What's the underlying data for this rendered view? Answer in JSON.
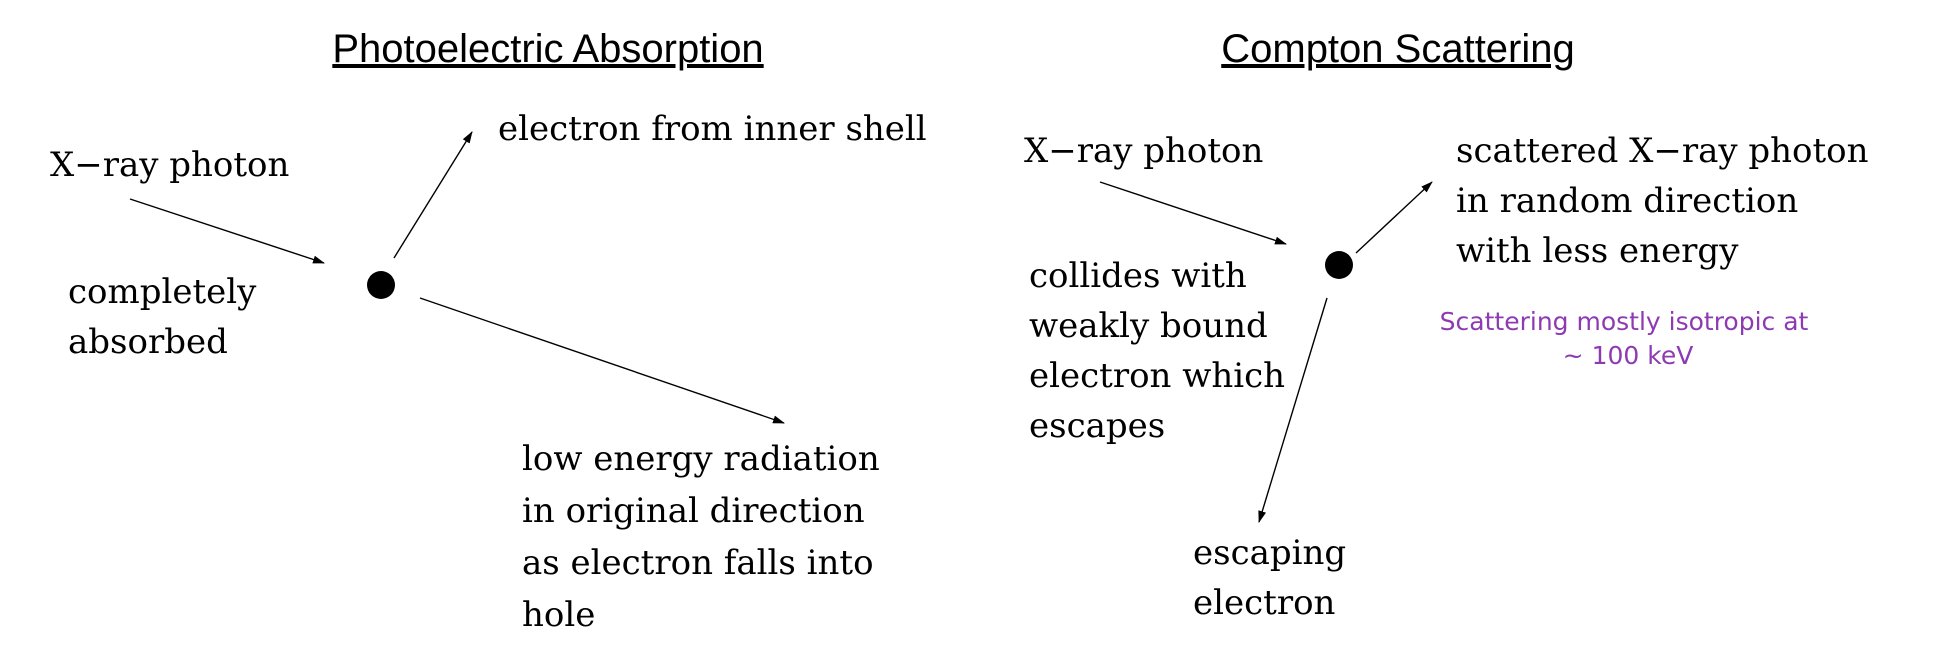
{
  "photoelectric": {
    "title": "Photoelectric  Absorption",
    "incoming_label": "X−ray photon",
    "absorbed_label": [
      "completely",
      "absorbed"
    ],
    "electron_label": "electron from inner shell",
    "radiation_label": [
      "low energy radiation",
      "in original direction",
      "as electron falls into",
      "hole"
    ]
  },
  "compton": {
    "title": "Compton Scattering",
    "incoming_label": "X−ray photon",
    "collision_label": [
      "collides with",
      "weakly bound",
      "electron which",
      "escapes"
    ],
    "scattered_label": [
      "scattered X−ray photon",
      "in random direction",
      "with less energy"
    ],
    "note": [
      "Scattering mostly isotropic at",
      "~ 100 keV"
    ],
    "escaping_label": [
      "escaping",
      "electron"
    ]
  },
  "colors": {
    "text": "#000000",
    "note": "#8e3ab3",
    "dot": "#000000"
  }
}
